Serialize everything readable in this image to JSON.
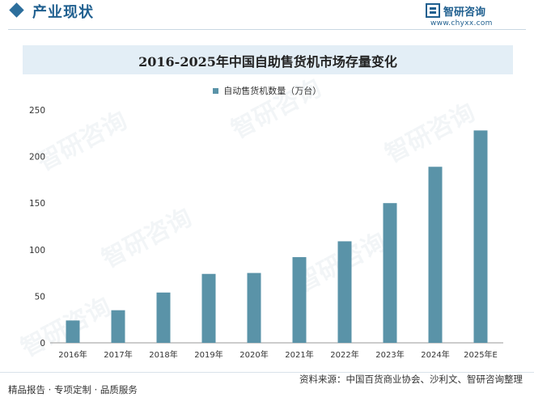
{
  "header": {
    "section_title": "产业现状",
    "brand_name": "智研咨询",
    "brand_url": "www.chyxx.com"
  },
  "chart_data": {
    "type": "bar",
    "title": "2016-2025年中国自助售货机市场存量变化",
    "series": [
      {
        "name": "自动售货机数量（万台）",
        "values": [
          24,
          35,
          54,
          74,
          75,
          92,
          109,
          150,
          189,
          228
        ]
      }
    ],
    "categories": [
      "2016年",
      "2017年",
      "2018年",
      "2019年",
      "2020年",
      "2021年",
      "2022年",
      "2023年",
      "2024年",
      "2025年E"
    ],
    "yticks": [
      "0",
      "50",
      "100",
      "150",
      "200",
      "250"
    ],
    "ylim": [
      0,
      250
    ],
    "grid": false,
    "legend_position": "top-center",
    "bar_color": "#5a93a8"
  },
  "footer": {
    "left": "精品报告 · 专项定制 · 品质服务",
    "right": "资料来源：中国百货商业协会、沙利文、智研咨询整理"
  },
  "watermark_text": "智研咨询"
}
